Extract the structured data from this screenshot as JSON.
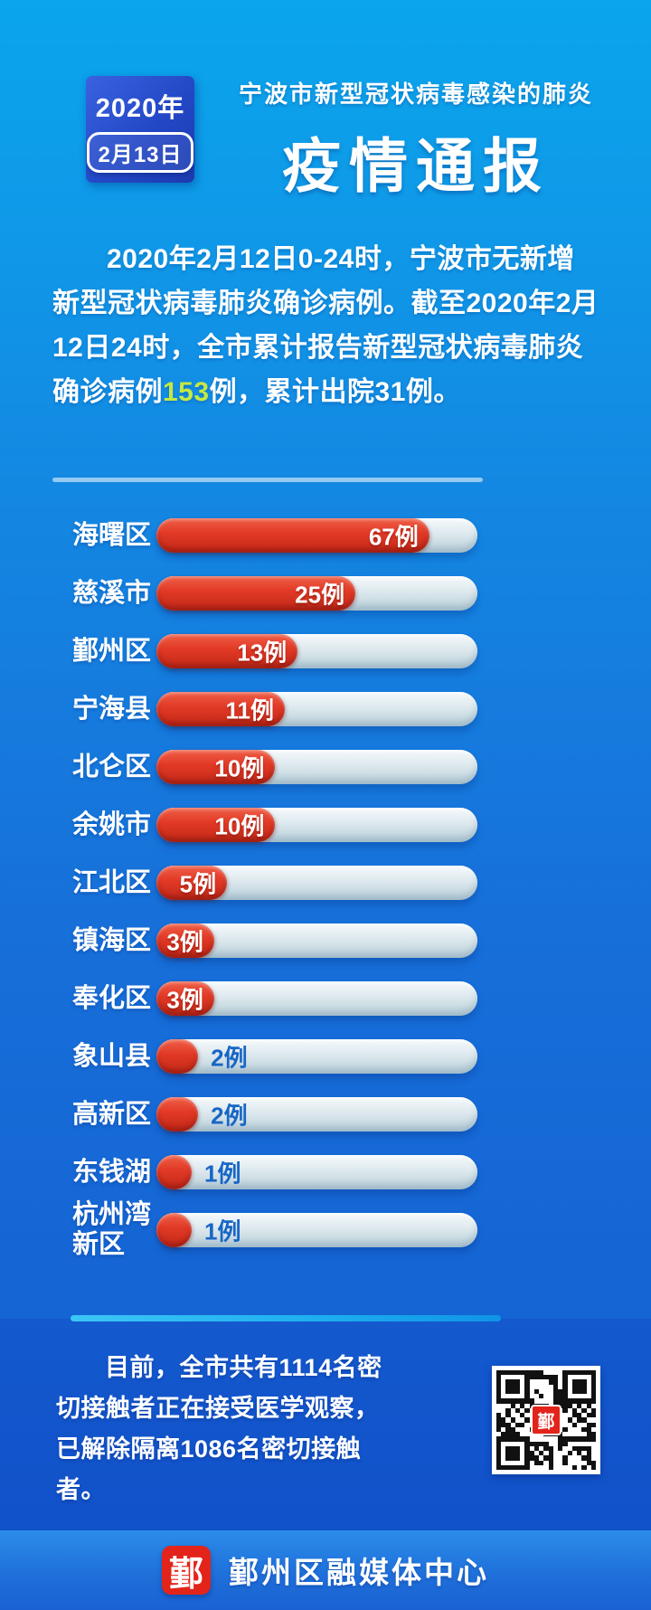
{
  "header": {
    "date_year": "2020年",
    "date_day": "2月13日",
    "subtitle": "宁波市新型冠状病毒感染的肺炎",
    "title": "疫情通报"
  },
  "summary": {
    "part1": "2020年2月12日0-24时，宁波市无新增新型冠状病毒肺炎确诊病例。截至2020年2月12日24时，全市累计报告新型冠状病毒肺炎确诊病例",
    "highlight": "153",
    "part2": "例，累计出院31例。"
  },
  "chart_data": {
    "type": "bar",
    "orientation": "horizontal",
    "unit": "例",
    "categories": [
      "海曙区",
      "慈溪市",
      "鄞州区",
      "宁海县",
      "北仑区",
      "余姚市",
      "江北区",
      "镇海区",
      "奉化区",
      "象山县",
      "高新区",
      "东钱湖",
      "杭州湾新区"
    ],
    "values": [
      67,
      25,
      13,
      11,
      10,
      10,
      5,
      3,
      3,
      2,
      2,
      1,
      1
    ],
    "labels": [
      "67例",
      "25例",
      "13例",
      "11例",
      "10例",
      "10例",
      "5例",
      "3例",
      "3例",
      "2例",
      "2例",
      "1例",
      "1例"
    ],
    "bar_pct": [
      85,
      62,
      44,
      40,
      37,
      37,
      22,
      18,
      18,
      13,
      13,
      11,
      11
    ],
    "label_placement": [
      "inside",
      "inside",
      "inside",
      "inside",
      "inside",
      "inside",
      "inside",
      "inside",
      "inside",
      "outside",
      "outside",
      "outside",
      "outside"
    ],
    "bar_color": "#df3522",
    "track_color": "#d7e4ea",
    "inside_label_color": "#ffffff",
    "outside_label_color": "#1866c6",
    "total": 153
  },
  "contact_note": {
    "text": "目前，全市共有1114名密切接触者正在接受医学观察，已解除隔离1086名密切接触者。"
  },
  "qr": {
    "center_char": "鄞"
  },
  "footer": {
    "logo_char": "鄞",
    "text": "鄞州区融媒体中心"
  },
  "colors": {
    "background_top": "#0aa5ec",
    "background_bottom": "#1560d1",
    "accent_red": "#df3522",
    "highlight_green": "#c6e843",
    "deep_blue_section": "#1254cb",
    "cyan_line": "#2bbcf4",
    "badge_blue": "#2348c6"
  }
}
